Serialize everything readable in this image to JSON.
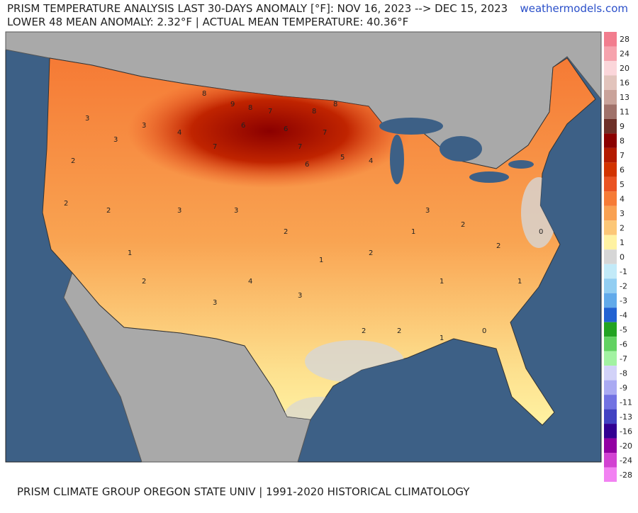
{
  "header": {
    "title": "PRISM TEMPERATURE ANALYSIS LAST 30-DAYS ANOMALY [°F]: NOV 16, 2023 --> DEC 15, 2023",
    "subtitle": "LOWER 48 MEAN ANOMALY: 2.32°F | ACTUAL MEAN TEMPERATURE: 40.36°F",
    "source": "weathermodels.com"
  },
  "footer": "PRISM CLIMATE GROUP OREGON STATE UNIV | 1991-2020 HISTORICAL CLIMATOLOGY",
  "legend": {
    "bins": [
      {
        "label": "28",
        "color": "#f27d8e"
      },
      {
        "label": "24",
        "color": "#f6a3ad"
      },
      {
        "label": "20",
        "color": "#fbd6da"
      },
      {
        "label": "16",
        "color": "#e2c4bc"
      },
      {
        "label": "13",
        "color": "#c9a39a"
      },
      {
        "label": "11",
        "color": "#a0726a"
      },
      {
        "label": "9",
        "color": "#6e3028"
      },
      {
        "label": "8",
        "color": "#8b0000"
      },
      {
        "label": "7",
        "color": "#b31a00"
      },
      {
        "label": "6",
        "color": "#d23300"
      },
      {
        "label": "5",
        "color": "#ea5322"
      },
      {
        "label": "4",
        "color": "#f67b36"
      },
      {
        "label": "3",
        "color": "#f9a152"
      },
      {
        "label": "2",
        "color": "#fcc777"
      },
      {
        "label": "1",
        "color": "#fff2a2"
      },
      {
        "label": "0",
        "color": "#d6d6d6"
      },
      {
        "label": "-1",
        "color": "#c2eaf8"
      },
      {
        "label": "-2",
        "color": "#92cef2"
      },
      {
        "label": "-3",
        "color": "#62aaea"
      },
      {
        "label": "-4",
        "color": "#2262d2"
      },
      {
        "label": "-5",
        "color": "#22a322"
      },
      {
        "label": "-6",
        "color": "#62d262"
      },
      {
        "label": "-7",
        "color": "#a2f2a2"
      },
      {
        "label": "-8",
        "color": "#d2d2f8"
      },
      {
        "label": "-9",
        "color": "#aaaaf2"
      },
      {
        "label": "-11",
        "color": "#7272e2"
      },
      {
        "label": "-13",
        "color": "#4242c2"
      },
      {
        "label": "-16",
        "color": "#320092"
      },
      {
        "label": "-20",
        "color": "#9200a2"
      },
      {
        "label": "-24",
        "color": "#d242d2"
      },
      {
        "label": "-28",
        "color": "#f282f2"
      }
    ]
  },
  "map": {
    "labels": [
      "8",
      "9",
      "8",
      "7",
      "6",
      "7",
      "8",
      "8",
      "7",
      "6",
      "7",
      "6",
      "5",
      "4",
      "4",
      "3",
      "3",
      "3",
      "2",
      "2",
      "2",
      "3",
      "3",
      "2",
      "1",
      "2",
      "1",
      "3",
      "2",
      "2",
      "1",
      "0",
      "1",
      "2",
      "2",
      "3",
      "4",
      "3",
      "2",
      "1",
      "0",
      "1"
    ]
  }
}
